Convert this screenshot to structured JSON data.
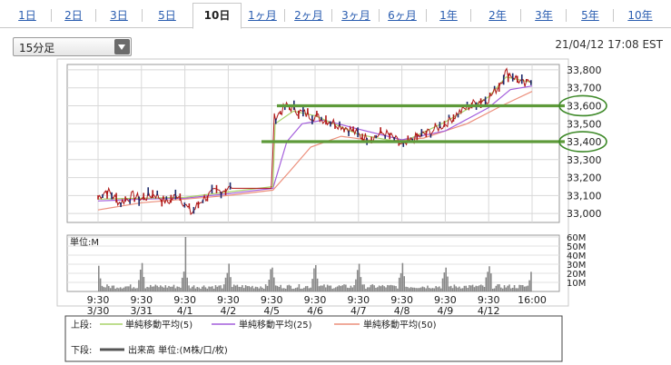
{
  "tabs": [
    {
      "label": "1日",
      "active": false
    },
    {
      "label": "2日",
      "active": false
    },
    {
      "label": "3日",
      "active": false
    },
    {
      "label": "5日",
      "active": false
    },
    {
      "label": "10日",
      "active": true
    },
    {
      "label": "1ヶ月",
      "active": false
    },
    {
      "label": "2ヶ月",
      "active": false
    },
    {
      "label": "3ヶ月",
      "active": false
    },
    {
      "label": "6ヶ月",
      "active": false
    },
    {
      "label": "1年",
      "active": false
    },
    {
      "label": "2年",
      "active": false
    },
    {
      "label": "3年",
      "active": false
    },
    {
      "label": "5年",
      "active": false
    },
    {
      "label": "10年",
      "active": false
    }
  ],
  "interval_select": {
    "value": "15分足"
  },
  "timestamp": "21/04/12 17:08 EST",
  "legend": {
    "upper_label": "上段:",
    "lower_label": "下段:",
    "sma5": "単純移動平均(5)",
    "sma25": "単純移動平均(25)",
    "sma50": "単純移動平均(50)",
    "volume": "出来高 単位:(M株/口/枚)"
  },
  "colors": {
    "price": "#b01818",
    "sma5": "#a9d36a",
    "sma25": "#a45fdc",
    "sma50": "#ec8f7c",
    "volume": "#888888",
    "highlight_line": "#5e9a3a",
    "highlight_circle": "#3f8a2a"
  },
  "chart_data": {
    "type": "line",
    "price_axis": {
      "ylim": [
        32950,
        33830
      ],
      "ticks": [
        "33,000",
        "33,100",
        "33,200",
        "33,300",
        "33,400",
        "33,500",
        "33,600",
        "33,700",
        "33,800"
      ]
    },
    "volume_axis": {
      "unit_label": "単位:M",
      "ylim": [
        0,
        62
      ],
      "ticks": [
        "10M",
        "20M",
        "30M",
        "40M",
        "50M",
        "60M"
      ]
    },
    "x_tick_labels": [
      {
        "time": "9:30",
        "date": "3/30"
      },
      {
        "time": "9:30",
        "date": "3/31"
      },
      {
        "time": "9:30",
        "date": "4/1"
      },
      {
        "time": "9:30",
        "date": "4/2"
      },
      {
        "time": "9:30",
        "date": "4/5"
      },
      {
        "time": "9:30",
        "date": "4/6"
      },
      {
        "time": "9:30",
        "date": "4/7"
      },
      {
        "time": "9:30",
        "date": "4/8"
      },
      {
        "time": "9:30",
        "date": "4/9"
      },
      {
        "time": "9:30",
        "date": "4/12"
      },
      {
        "time": "16:00",
        "date": ""
      }
    ],
    "price_keypoints": [
      [
        0,
        33090
      ],
      [
        0.2,
        33130
      ],
      [
        0.5,
        33060
      ],
      [
        0.8,
        33100
      ],
      [
        1.0,
        33080
      ],
      [
        1.3,
        33110
      ],
      [
        1.6,
        33060
      ],
      [
        1.85,
        33110
      ],
      [
        2.0,
        33050
      ],
      [
        2.15,
        33000
      ],
      [
        2.4,
        33080
      ],
      [
        2.7,
        33120
      ],
      [
        3.0,
        33140
      ],
      [
        3.05,
        33140
      ],
      [
        4.0,
        33140
      ],
      [
        4.05,
        33530
      ],
      [
        4.35,
        33600
      ],
      [
        4.7,
        33560
      ],
      [
        5.0,
        33540
      ],
      [
        5.4,
        33510
      ],
      [
        5.8,
        33470
      ],
      [
        6.05,
        33430
      ],
      [
        6.3,
        33420
      ],
      [
        6.6,
        33450
      ],
      [
        6.85,
        33410
      ],
      [
        7.05,
        33370
      ],
      [
        7.3,
        33420
      ],
      [
        7.7,
        33460
      ],
      [
        8.0,
        33500
      ],
      [
        8.3,
        33560
      ],
      [
        8.7,
        33620
      ],
      [
        9.0,
        33640
      ],
      [
        9.2,
        33700
      ],
      [
        9.4,
        33790
      ],
      [
        9.6,
        33760
      ],
      [
        9.85,
        33710
      ],
      [
        10.0,
        33760
      ]
    ],
    "sma5": [
      [
        0,
        33080
      ],
      [
        1,
        33085
      ],
      [
        2,
        33090
      ],
      [
        3,
        33120
      ],
      [
        4.03,
        33150
      ],
      [
        4.08,
        33500
      ],
      [
        4.5,
        33570
      ],
      [
        5,
        33545
      ],
      [
        6,
        33440
      ],
      [
        7,
        33395
      ],
      [
        8,
        33510
      ],
      [
        9,
        33650
      ],
      [
        9.4,
        33760
      ],
      [
        10,
        33730
      ]
    ],
    "sma25": [
      [
        0,
        33070
      ],
      [
        1,
        33080
      ],
      [
        2,
        33085
      ],
      [
        3,
        33110
      ],
      [
        4.03,
        33140
      ],
      [
        4.35,
        33400
      ],
      [
        4.7,
        33500
      ],
      [
        5.2,
        33520
      ],
      [
        6,
        33470
      ],
      [
        7,
        33410
      ],
      [
        8,
        33460
      ],
      [
        9,
        33590
      ],
      [
        9.5,
        33690
      ],
      [
        10,
        33710
      ]
    ],
    "sma50": [
      [
        0,
        33020
      ],
      [
        1,
        33060
      ],
      [
        2,
        33080
      ],
      [
        3,
        33100
      ],
      [
        4.03,
        33130
      ],
      [
        4.4,
        33230
      ],
      [
        4.9,
        33370
      ],
      [
        5.6,
        33430
      ],
      [
        6.5,
        33400
      ],
      [
        7.5,
        33420
      ],
      [
        8.5,
        33500
      ],
      [
        9.3,
        33600
      ],
      [
        10,
        33680
      ]
    ],
    "horizontal_levels": [
      33600,
      33400
    ],
    "circled_labels": [
      "33,600",
      "33,400"
    ],
    "volume_pattern": {
      "daily_open_spike": 32,
      "daily_close_spike": 26,
      "base": 5,
      "mid": 3,
      "peak": 60,
      "peak_day": 2
    }
  }
}
